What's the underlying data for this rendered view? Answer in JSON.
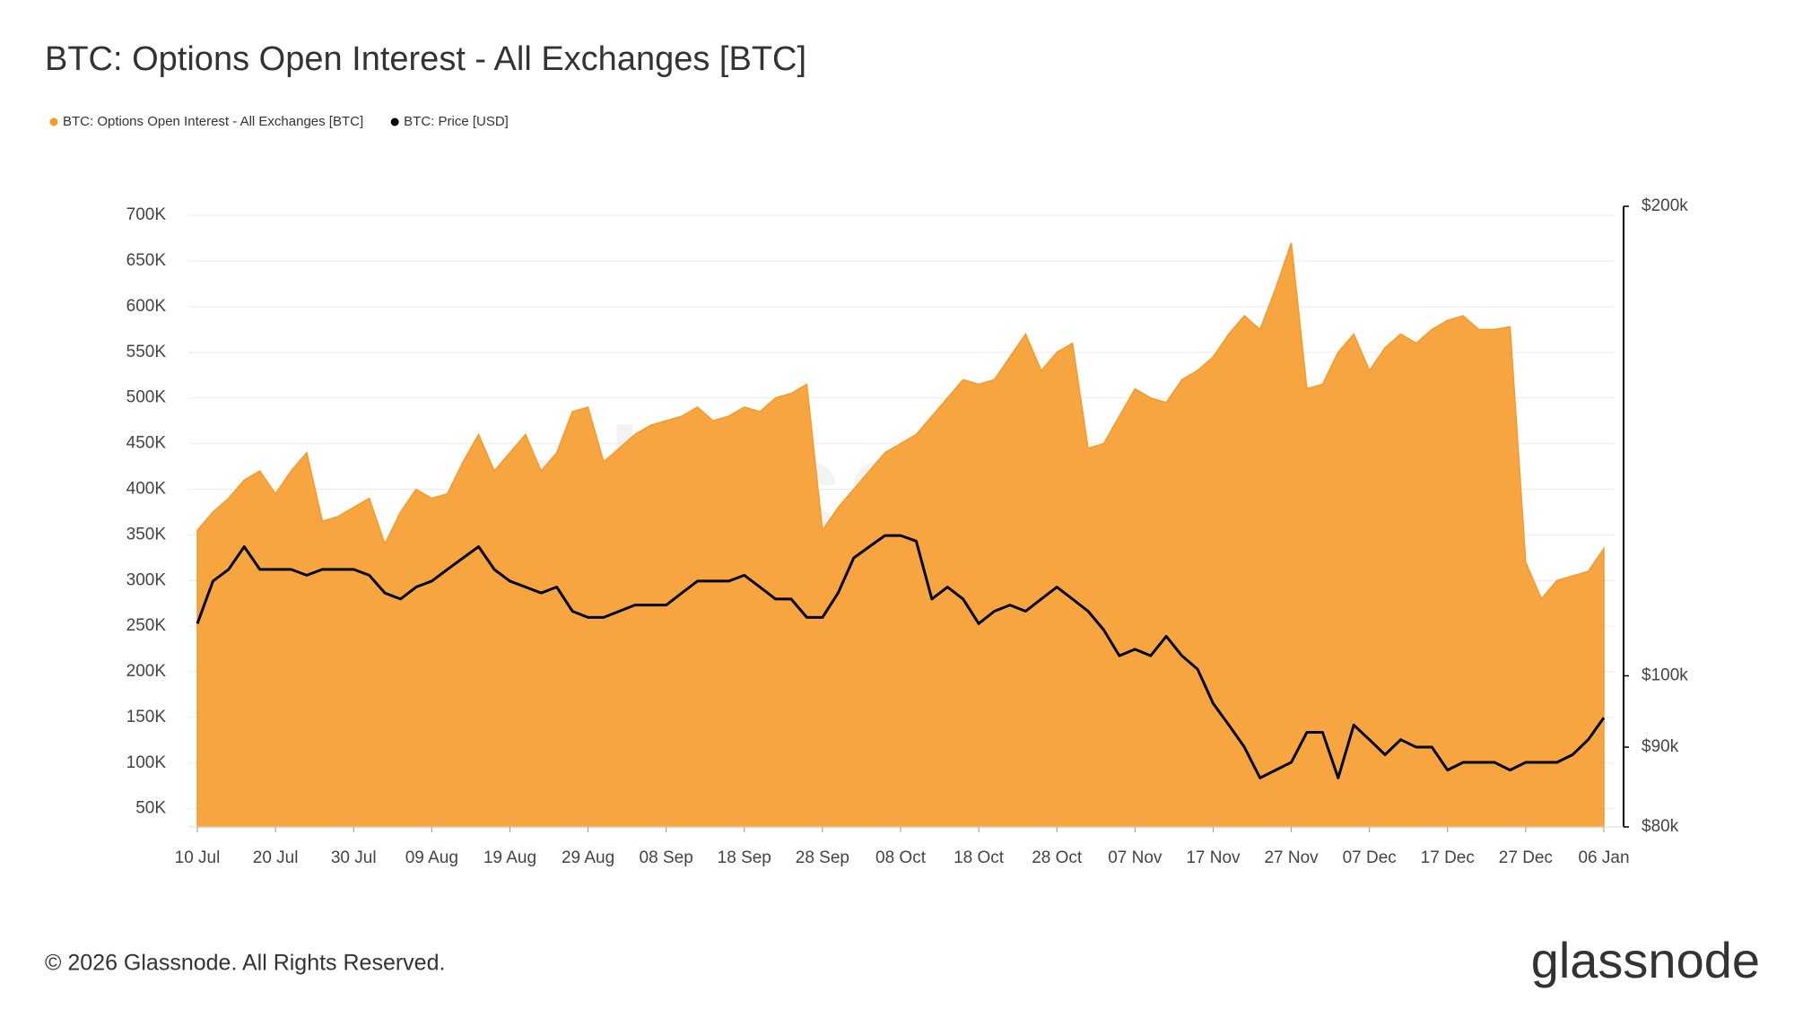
{
  "chart_data": {
    "type": "area",
    "title": "BTC: Options Open Interest - All Exchanges [BTC]",
    "watermark": "glassnode",
    "footer": "© 2026 Glassnode. All Rights Reserved.",
    "logo": "glassnode",
    "categories": [
      "10 Jul",
      null,
      null,
      null,
      null,
      "20 Jul",
      null,
      null,
      null,
      null,
      "30 Jul",
      null,
      null,
      null,
      null,
      "09 Aug",
      null,
      null,
      null,
      null,
      "19 Aug",
      null,
      null,
      null,
      null,
      "29 Aug",
      null,
      null,
      null,
      null,
      "08 Sep",
      null,
      null,
      null,
      null,
      "18 Sep",
      null,
      null,
      null,
      null,
      "28 Sep",
      null,
      null,
      null,
      null,
      "08 Oct",
      null,
      null,
      null,
      null,
      "18 Oct",
      null,
      null,
      null,
      null,
      "28 Oct",
      null,
      null,
      null,
      null,
      "07 Nov",
      null,
      null,
      null,
      null,
      "17 Nov",
      null,
      null,
      null,
      null,
      "27 Nov",
      null,
      null,
      null,
      null,
      "07 Dec",
      null,
      null,
      null,
      null,
      "17 Dec",
      null,
      null,
      null,
      null,
      "27 Dec",
      null,
      null,
      null,
      null,
      "06 Jan"
    ],
    "series": [
      {
        "name": "BTC: Options Open Interest - All Exchanges [BTC]",
        "type": "area",
        "color": "#f7a541",
        "legend_color": "#f39a2b",
        "values": [
          355000,
          375000,
          390000,
          410000,
          420000,
          395000,
          420000,
          440000,
          365000,
          370000,
          380000,
          390000,
          340000,
          375000,
          400000,
          390000,
          395000,
          430000,
          460000,
          420000,
          440000,
          460000,
          420000,
          440000,
          485000,
          490000,
          430000,
          445000,
          460000,
          470000,
          475000,
          480000,
          490000,
          475000,
          480000,
          490000,
          485000,
          500000,
          505000,
          515000,
          355000,
          380000,
          400000,
          420000,
          440000,
          450000,
          460000,
          480000,
          500000,
          520000,
          515000,
          520000,
          545000,
          570000,
          530000,
          550000,
          560000,
          445000,
          450000,
          480000,
          510000,
          500000,
          495000,
          520000,
          530000,
          545000,
          570000,
          590000,
          575000,
          620000,
          670000,
          510000,
          515000,
          550000,
          570000,
          530000,
          555000,
          570000,
          560000,
          575000,
          585000,
          590000,
          575000,
          575000,
          578000,
          320000,
          280000,
          300000,
          305000,
          310000,
          335000
        ]
      },
      {
        "name": "BTC: Price [USD]",
        "type": "line",
        "axis": "y2",
        "color": "#000000",
        "values": [
          108000,
          115000,
          117000,
          121000,
          117000,
          117000,
          117000,
          116000,
          117000,
          117000,
          117000,
          116000,
          113000,
          112000,
          114000,
          115000,
          117000,
          119000,
          121000,
          117000,
          115000,
          114000,
          113000,
          114000,
          110000,
          109000,
          109000,
          110000,
          111000,
          111000,
          111000,
          113000,
          115000,
          115000,
          115000,
          116000,
          114000,
          112000,
          112000,
          109000,
          109000,
          113000,
          119000,
          121000,
          123000,
          123000,
          122000,
          112000,
          114000,
          112000,
          108000,
          110000,
          111000,
          110000,
          112000,
          114000,
          112000,
          110000,
          107000,
          103000,
          104000,
          103000,
          106000,
          103000,
          101000,
          96000,
          93000,
          90000,
          86000,
          87000,
          88000,
          92000,
          92000,
          86000,
          93000,
          91000,
          89000,
          91000,
          90000,
          90000,
          87000,
          88000,
          88000,
          88000,
          87000,
          88000,
          88000,
          88000,
          89000,
          91000,
          94000
        ]
      }
    ],
    "ylim": [
      30000,
      710000
    ],
    "yticks": [
      {
        "value": 50000,
        "label": "50K"
      },
      {
        "value": 100000,
        "label": "100K"
      },
      {
        "value": 150000,
        "label": "150K"
      },
      {
        "value": 200000,
        "label": "200K"
      },
      {
        "value": 250000,
        "label": "250K"
      },
      {
        "value": 300000,
        "label": "300K"
      },
      {
        "value": 350000,
        "label": "350K"
      },
      {
        "value": 400000,
        "label": "400K"
      },
      {
        "value": 450000,
        "label": "450K"
      },
      {
        "value": 500000,
        "label": "500K"
      },
      {
        "value": 550000,
        "label": "550K"
      },
      {
        "value": 600000,
        "label": "600K"
      },
      {
        "value": 650000,
        "label": "650K"
      },
      {
        "value": 700000,
        "label": "700K"
      }
    ],
    "y2lim": [
      80000,
      200000
    ],
    "y2scale": "log",
    "y2ticks": [
      {
        "value": 80000,
        "label": "$80k"
      },
      {
        "value": 90000,
        "label": "$90k"
      },
      {
        "value": 100000,
        "label": "$100k"
      },
      {
        "value": 200000,
        "label": "$200k"
      }
    ],
    "grid": true
  }
}
